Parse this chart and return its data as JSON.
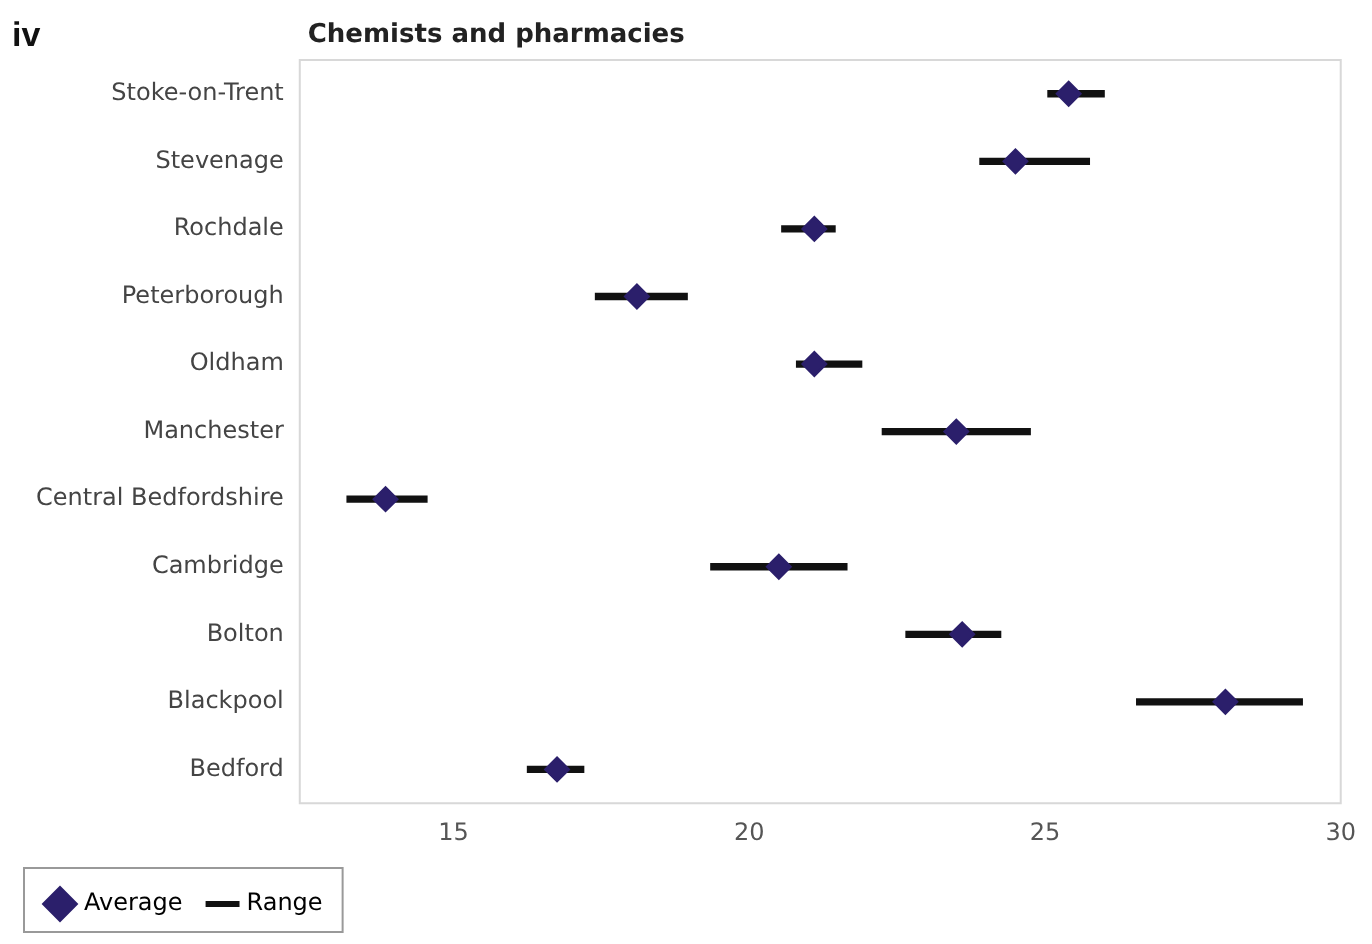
{
  "chart_data": {
    "type": "scatter",
    "orientation": "horizontal",
    "title": "Chemists and pharmacies",
    "annotations": [
      "iv"
    ],
    "categories": [
      "Stoke-on-Trent",
      "Stevenage",
      "Rochdale",
      "Peterborough",
      "Oldham",
      "Manchester",
      "Central Bedfordshire",
      "Cambridge",
      "Bolton",
      "Blackpool",
      "Bedford"
    ],
    "series": [
      {
        "name": "Range",
        "type": "bar",
        "color": "#111111",
        "base": [
          25.05,
          23.9,
          20.55,
          17.4,
          20.8,
          22.25,
          13.2,
          19.35,
          22.65,
          26.55,
          16.25
        ],
        "values": [
          0.95,
          1.85,
          0.9,
          1.55,
          1.1,
          2.5,
          1.35,
          2.3,
          1.6,
          2.8,
          0.95
        ]
      },
      {
        "name": "Average",
        "color": "#2b1f6b",
        "marker": "diamond",
        "values": [
          25.4,
          24.5,
          21.1,
          18.1,
          21.1,
          23.5,
          13.85,
          20.5,
          23.6,
          28.05,
          16.75
        ]
      }
    ],
    "xlim": [
      12.4,
      30
    ],
    "xticks": [
      15,
      20,
      25,
      30
    ],
    "grid": false,
    "legend": "bottom left"
  }
}
